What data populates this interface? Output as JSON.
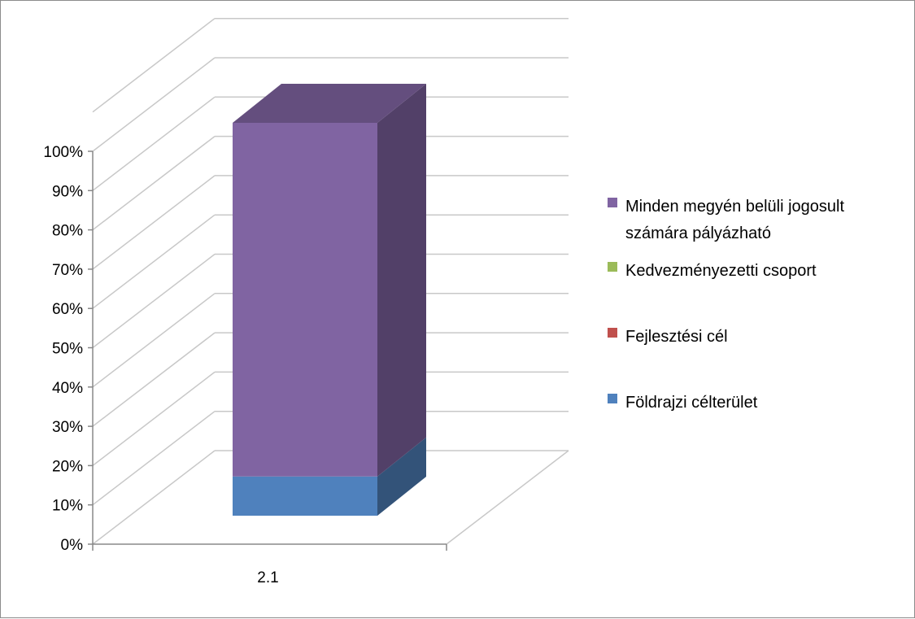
{
  "chart_data": {
    "type": "bar",
    "stacked": true,
    "percent_stacked": true,
    "three_d": true,
    "categories": [
      "2.1"
    ],
    "series": [
      {
        "name": "Földrajzi célterület",
        "values": [
          10
        ],
        "color": "#4f81bd"
      },
      {
        "name": "Fejlesztési cél",
        "values": [
          0
        ],
        "color": "#c0504d"
      },
      {
        "name": "Kedvezményezetti csoport",
        "values": [
          0
        ],
        "color": "#9bbb59"
      },
      {
        "name": "Minden megyén belüli jogosult számára pályázható",
        "legend_lines": [
          "Minden megyén belüli jogosult",
          "számára  pályázható"
        ],
        "values": [
          90
        ],
        "color": "#8064a2"
      }
    ],
    "legend_order": [
      3,
      2,
      1,
      0
    ],
    "yticks": [
      "0%",
      "10%",
      "20%",
      "30%",
      "40%",
      "50%",
      "60%",
      "70%",
      "80%",
      "90%",
      "100%"
    ],
    "ylim": [
      0,
      100
    ],
    "grid": true,
    "legend_position": "right"
  }
}
